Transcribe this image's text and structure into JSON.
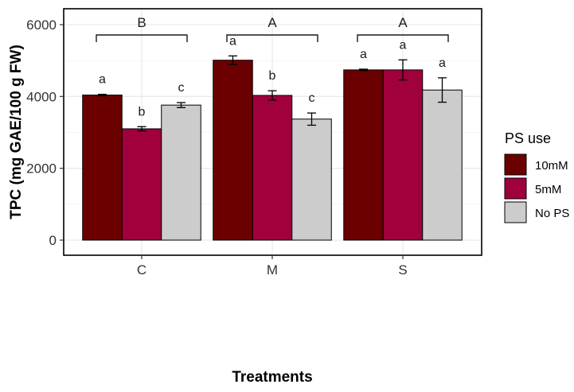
{
  "chart_data": {
    "type": "bar",
    "title": "",
    "xlabel": "Treatments",
    "ylabel": "TPC (mg GAE/100 g FW)",
    "ylim": [
      0,
      6000
    ],
    "yticks": [
      0,
      2000,
      4000,
      6000
    ],
    "ytick_labels": [
      "0",
      "2000",
      "4000",
      "6000"
    ],
    "categories": [
      "C",
      "M",
      "S"
    ],
    "grid": true,
    "legend_title": "PS use",
    "legend_position": "right",
    "series": [
      {
        "name": "10mM",
        "color": "#6b0000",
        "values": [
          4040,
          5010,
          4740
        ],
        "errors": [
          20,
          120,
          20
        ],
        "letters": [
          "a",
          "a",
          "a"
        ]
      },
      {
        "name": "5mM",
        "color": "#a0003c",
        "values": [
          3100,
          4030,
          4740
        ],
        "errors": [
          60,
          130,
          280
        ],
        "letters": [
          "b",
          "b",
          "a"
        ]
      },
      {
        "name": "No PS",
        "color": "#cccccc",
        "values": [
          3760,
          3370,
          4180
        ],
        "errors": [
          70,
          170,
          340
        ],
        "letters": [
          "c",
          "c",
          "a"
        ]
      }
    ],
    "group_letters": [
      "B",
      "A",
      "A"
    ]
  }
}
